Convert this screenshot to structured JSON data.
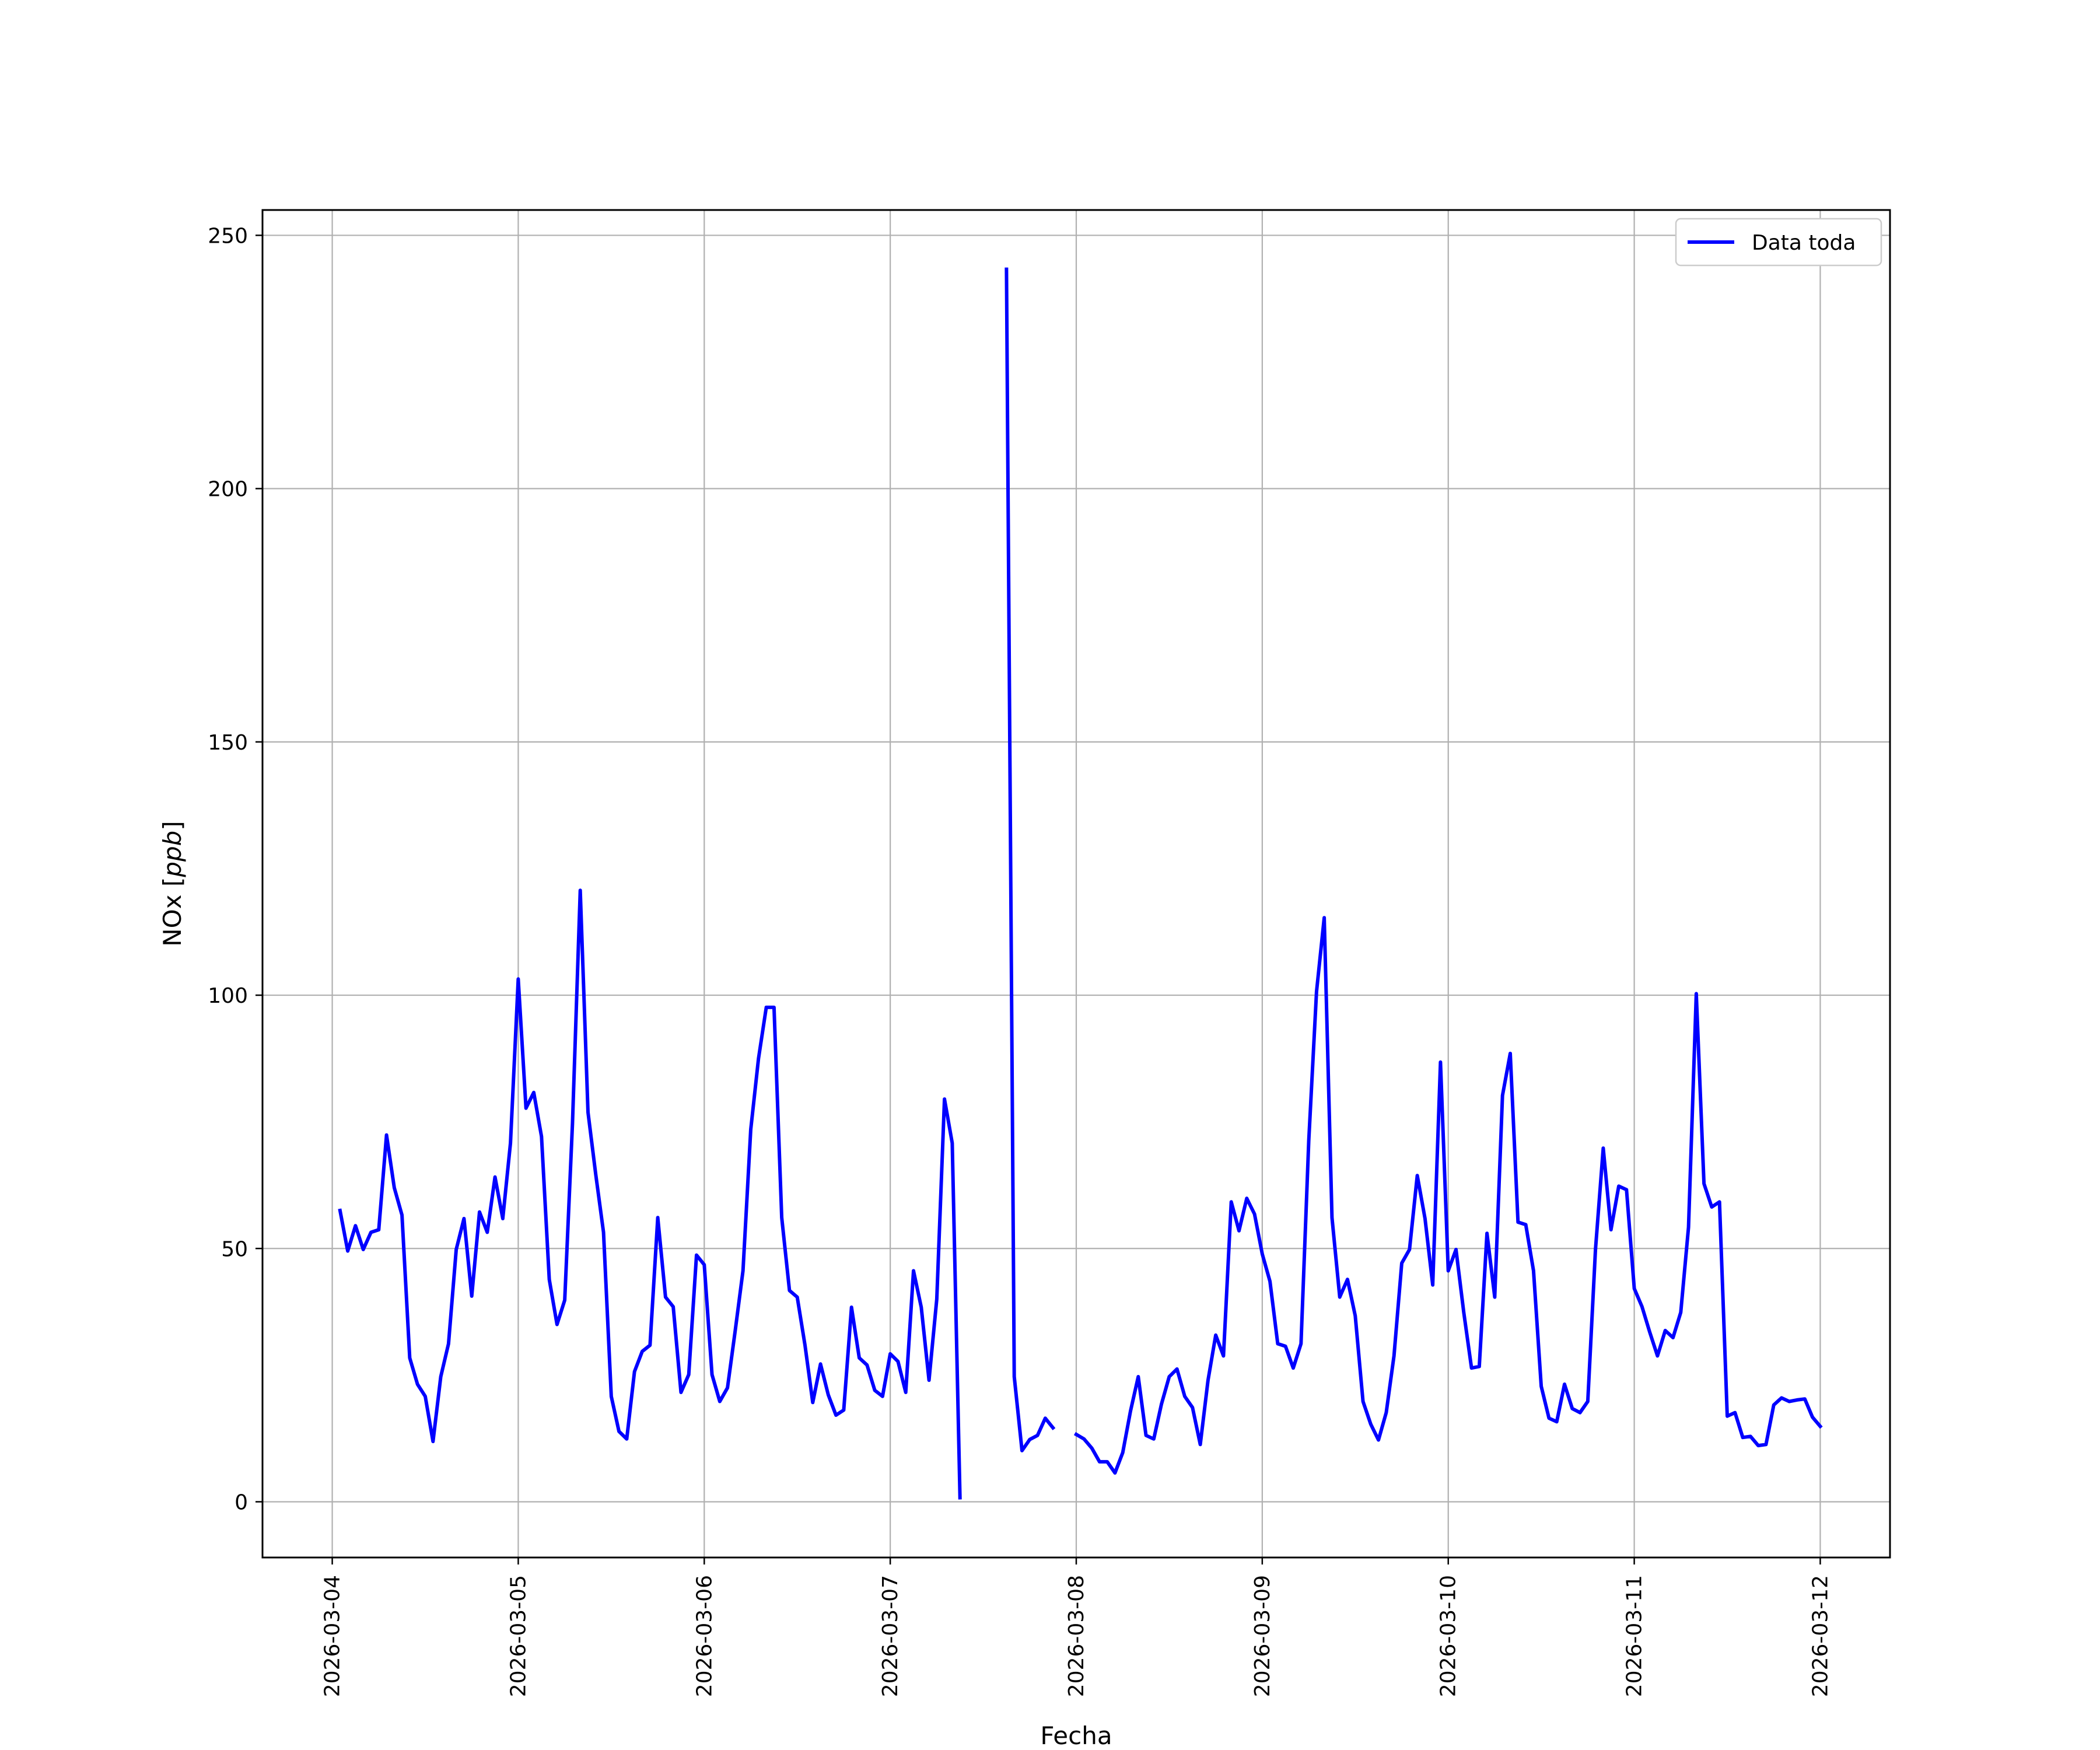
{
  "chart_data": {
    "type": "line",
    "xlabel": "Fecha",
    "ylabel_main": "NOx",
    "ylabel_unit": "ppb",
    "ylim": [
      -11,
      255
    ],
    "xlim": [
      "2026-03-03 15:00",
      "2026-03-12 09:00"
    ],
    "yticks": [
      0,
      50,
      100,
      150,
      200,
      250
    ],
    "xticks": [
      "2026-03-04",
      "2026-03-05",
      "2026-03-06",
      "2026-03-07",
      "2026-03-08",
      "2026-03-09",
      "2026-03-10",
      "2026-03-11",
      "2026-03-12"
    ],
    "grid": true,
    "legend_position": "top-right",
    "series": [
      {
        "name": "Data toda",
        "color": "#0000ff",
        "segments": [
          [
            [
              "2026-03-04 01:00",
              57.5
            ],
            [
              "2026-03-04 02:00",
              49.5
            ],
            [
              "2026-03-04 03:00",
              54.5
            ],
            [
              "2026-03-04 04:00",
              49.8
            ],
            [
              "2026-03-04 05:00",
              53.2
            ],
            [
              "2026-03-04 06:00",
              53.7
            ],
            [
              "2026-03-04 07:00",
              72.4
            ],
            [
              "2026-03-04 08:00",
              62.0
            ],
            [
              "2026-03-04 09:00",
              56.6
            ],
            [
              "2026-03-04 10:00",
              28.4
            ],
            [
              "2026-03-04 11:00",
              23.2
            ],
            [
              "2026-03-04 12:00",
              20.8
            ],
            [
              "2026-03-04 13:00",
              11.9
            ],
            [
              "2026-03-04 14:00",
              24.7
            ],
            [
              "2026-03-04 15:00",
              31.2
            ],
            [
              "2026-03-04 16:00",
              49.8
            ],
            [
              "2026-03-04 17:00",
              55.9
            ],
            [
              "2026-03-04 18:00",
              40.6
            ],
            [
              "2026-03-04 19:00",
              57.2
            ],
            [
              "2026-03-04 20:00",
              53.2
            ],
            [
              "2026-03-04 21:00",
              64.1
            ],
            [
              "2026-03-04 22:00",
              55.9
            ],
            [
              "2026-03-04 23:00",
              70.8
            ],
            [
              "2026-03-05 00:00",
              103.2
            ],
            [
              "2026-03-05 01:00",
              77.7
            ],
            [
              "2026-03-05 02:00",
              80.8
            ],
            [
              "2026-03-05 03:00",
              72.1
            ],
            [
              "2026-03-05 04:00",
              43.9
            ],
            [
              "2026-03-05 05:00",
              35.0
            ],
            [
              "2026-03-05 06:00",
              39.8
            ],
            [
              "2026-03-05 07:00",
              74.7
            ],
            [
              "2026-03-05 08:00",
              120.7
            ],
            [
              "2026-03-05 09:00",
              76.9
            ],
            [
              "2026-03-05 10:00",
              64.6
            ],
            [
              "2026-03-05 11:00",
              53.2
            ],
            [
              "2026-03-05 12:00",
              20.8
            ],
            [
              "2026-03-05 13:00",
              13.9
            ],
            [
              "2026-03-05 14:00",
              12.4
            ],
            [
              "2026-03-05 15:00",
              25.7
            ],
            [
              "2026-03-05 16:00",
              29.7
            ],
            [
              "2026-03-05 17:00",
              30.9
            ],
            [
              "2026-03-05 18:00",
              56.1
            ],
            [
              "2026-03-05 19:00",
              40.4
            ],
            [
              "2026-03-05 20:00",
              38.5
            ],
            [
              "2026-03-05 21:00",
              21.6
            ],
            [
              "2026-03-05 22:00",
              25.1
            ],
            [
              "2026-03-05 23:00",
              48.7
            ],
            [
              "2026-03-06 00:00",
              46.8
            ],
            [
              "2026-03-06 01:00",
              25.1
            ],
            [
              "2026-03-06 02:00",
              19.8
            ],
            [
              "2026-03-06 03:00",
              22.5
            ],
            [
              "2026-03-06 04:00",
              33.8
            ],
            [
              "2026-03-06 05:00",
              45.6
            ],
            [
              "2026-03-06 06:00",
              73.5
            ],
            [
              "2026-03-06 07:00",
              87.5
            ],
            [
              "2026-03-06 08:00",
              97.6
            ],
            [
              "2026-03-06 09:00",
              97.6
            ],
            [
              "2026-03-06 10:00",
              56.1
            ],
            [
              "2026-03-06 11:00",
              41.7
            ],
            [
              "2026-03-06 12:00",
              40.4
            ],
            [
              "2026-03-06 13:00",
              30.9
            ],
            [
              "2026-03-06 14:00",
              19.6
            ],
            [
              "2026-03-06 15:00",
              27.2
            ],
            [
              "2026-03-06 16:00",
              21.1
            ],
            [
              "2026-03-06 17:00",
              17.1
            ],
            [
              "2026-03-06 18:00",
              18.1
            ],
            [
              "2026-03-06 19:00",
              38.4
            ],
            [
              "2026-03-06 20:00",
              28.4
            ],
            [
              "2026-03-06 21:00",
              27.0
            ],
            [
              "2026-03-06 22:00",
              22.0
            ],
            [
              "2026-03-06 23:00",
              20.8
            ],
            [
              "2026-03-07 00:00",
              29.2
            ],
            [
              "2026-03-07 01:00",
              27.7
            ],
            [
              "2026-03-07 02:00",
              21.6
            ],
            [
              "2026-03-07 03:00",
              45.6
            ],
            [
              "2026-03-07 04:00",
              38.4
            ],
            [
              "2026-03-07 05:00",
              24.0
            ],
            [
              "2026-03-07 06:00",
              40.0
            ],
            [
              "2026-03-07 07:00",
              79.5
            ],
            [
              "2026-03-07 08:00",
              70.8
            ],
            [
              "2026-03-07 09:00",
              0.8
            ]
          ],
          [
            [
              "2026-03-07 15:00",
              243.3
            ],
            [
              "2026-03-07 16:00",
              24.7
            ],
            [
              "2026-03-07 17:00",
              10.1
            ],
            [
              "2026-03-07 18:00",
              12.3
            ],
            [
              "2026-03-07 19:00",
              13.1
            ],
            [
              "2026-03-07 20:00",
              16.5
            ],
            [
              "2026-03-07 21:00",
              14.6
            ]
          ],
          [
            [
              "2026-03-08 00:00",
              13.3
            ],
            [
              "2026-03-08 01:00",
              12.4
            ],
            [
              "2026-03-08 02:00",
              10.6
            ],
            [
              "2026-03-08 03:00",
              7.9
            ],
            [
              "2026-03-08 04:00",
              7.9
            ],
            [
              "2026-03-08 05:00",
              5.7
            ],
            [
              "2026-03-08 06:00",
              9.7
            ],
            [
              "2026-03-08 07:00",
              17.9
            ],
            [
              "2026-03-08 08:00",
              24.7
            ],
            [
              "2026-03-08 09:00",
              13.1
            ],
            [
              "2026-03-08 10:00",
              12.4
            ],
            [
              "2026-03-08 11:00",
              19.3
            ],
            [
              "2026-03-08 12:00",
              24.7
            ],
            [
              "2026-03-08 13:00",
              26.2
            ],
            [
              "2026-03-08 14:00",
              20.8
            ],
            [
              "2026-03-08 15:00",
              18.6
            ],
            [
              "2026-03-08 16:00",
              11.3
            ],
            [
              "2026-03-08 17:00",
              24.0
            ],
            [
              "2026-03-08 18:00",
              32.9
            ],
            [
              "2026-03-08 19:00",
              28.8
            ],
            [
              "2026-03-08 20:00",
              59.2
            ],
            [
              "2026-03-08 21:00",
              53.5
            ],
            [
              "2026-03-08 22:00",
              59.9
            ],
            [
              "2026-03-08 23:00",
              56.8
            ],
            [
              "2026-03-09 00:00",
              48.9
            ],
            [
              "2026-03-09 01:00",
              43.5
            ],
            [
              "2026-03-09 02:00",
              31.2
            ],
            [
              "2026-03-09 03:00",
              30.7
            ],
            [
              "2026-03-09 04:00",
              26.4
            ],
            [
              "2026-03-09 05:00",
              31.2
            ],
            [
              "2026-03-09 06:00",
              71.3
            ],
            [
              "2026-03-09 07:00",
              100.7
            ],
            [
              "2026-03-09 08:00",
              115.3
            ],
            [
              "2026-03-09 09:00",
              56.1
            ],
            [
              "2026-03-09 10:00",
              40.4
            ],
            [
              "2026-03-09 11:00",
              43.9
            ],
            [
              "2026-03-09 12:00",
              36.7
            ],
            [
              "2026-03-09 13:00",
              19.8
            ],
            [
              "2026-03-09 14:00",
              15.3
            ],
            [
              "2026-03-09 15:00",
              12.2
            ],
            [
              "2026-03-09 16:00",
              17.6
            ],
            [
              "2026-03-09 17:00",
              28.8
            ],
            [
              "2026-03-09 18:00",
              47.1
            ],
            [
              "2026-03-09 19:00",
              49.8
            ],
            [
              "2026-03-09 20:00",
              64.4
            ],
            [
              "2026-03-09 21:00",
              55.9
            ],
            [
              "2026-03-09 22:00",
              42.8
            ],
            [
              "2026-03-09 23:00",
              86.8
            ],
            [
              "2026-03-10 00:00",
              45.6
            ],
            [
              "2026-03-10 01:00",
              49.8
            ],
            [
              "2026-03-10 02:00",
              37.4
            ],
            [
              "2026-03-10 03:00",
              26.4
            ],
            [
              "2026-03-10 04:00",
              26.7
            ],
            [
              "2026-03-10 05:00",
              53.0
            ],
            [
              "2026-03-10 06:00",
              40.4
            ],
            [
              "2026-03-10 07:00",
              80.2
            ],
            [
              "2026-03-10 08:00",
              88.5
            ],
            [
              "2026-03-10 09:00",
              55.2
            ],
            [
              "2026-03-10 10:00",
              54.7
            ],
            [
              "2026-03-10 11:00",
              45.6
            ],
            [
              "2026-03-10 12:00",
              22.8
            ],
            [
              "2026-03-10 13:00",
              16.5
            ],
            [
              "2026-03-10 14:00",
              15.8
            ],
            [
              "2026-03-10 15:00",
              23.2
            ],
            [
              "2026-03-10 16:00",
              18.4
            ],
            [
              "2026-03-10 17:00",
              17.6
            ],
            [
              "2026-03-10 18:00",
              19.8
            ],
            [
              "2026-03-10 19:00",
              49.8
            ],
            [
              "2026-03-10 20:00",
              69.8
            ],
            [
              "2026-03-10 21:00",
              53.7
            ],
            [
              "2026-03-10 22:00",
              62.3
            ],
            [
              "2026-03-10 23:00",
              61.6
            ],
            [
              "2026-03-11 00:00",
              42.1
            ],
            [
              "2026-03-11 01:00",
              38.5
            ],
            [
              "2026-03-11 02:00",
              33.5
            ],
            [
              "2026-03-11 03:00",
              28.8
            ],
            [
              "2026-03-11 04:00",
              33.8
            ],
            [
              "2026-03-11 05:00",
              32.4
            ],
            [
              "2026-03-11 06:00",
              37.4
            ],
            [
              "2026-03-11 07:00",
              54.2
            ],
            [
              "2026-03-11 08:00",
              100.3
            ],
            [
              "2026-03-11 09:00",
              62.8
            ],
            [
              "2026-03-11 10:00",
              58.2
            ],
            [
              "2026-03-11 11:00",
              59.2
            ],
            [
              "2026-03-11 12:00",
              16.9
            ],
            [
              "2026-03-11 13:00",
              17.6
            ],
            [
              "2026-03-11 14:00",
              12.7
            ],
            [
              "2026-03-11 15:00",
              12.9
            ],
            [
              "2026-03-11 16:00",
              11.1
            ],
            [
              "2026-03-11 17:00",
              11.3
            ],
            [
              "2026-03-11 18:00",
              19.1
            ],
            [
              "2026-03-11 19:00",
              20.5
            ],
            [
              "2026-03-11 20:00",
              19.8
            ],
            [
              "2026-03-11 21:00",
              20.1
            ],
            [
              "2026-03-11 22:00",
              20.3
            ],
            [
              "2026-03-11 23:00",
              16.7
            ],
            [
              "2026-03-12 00:00",
              14.9
            ]
          ]
        ]
      }
    ]
  }
}
